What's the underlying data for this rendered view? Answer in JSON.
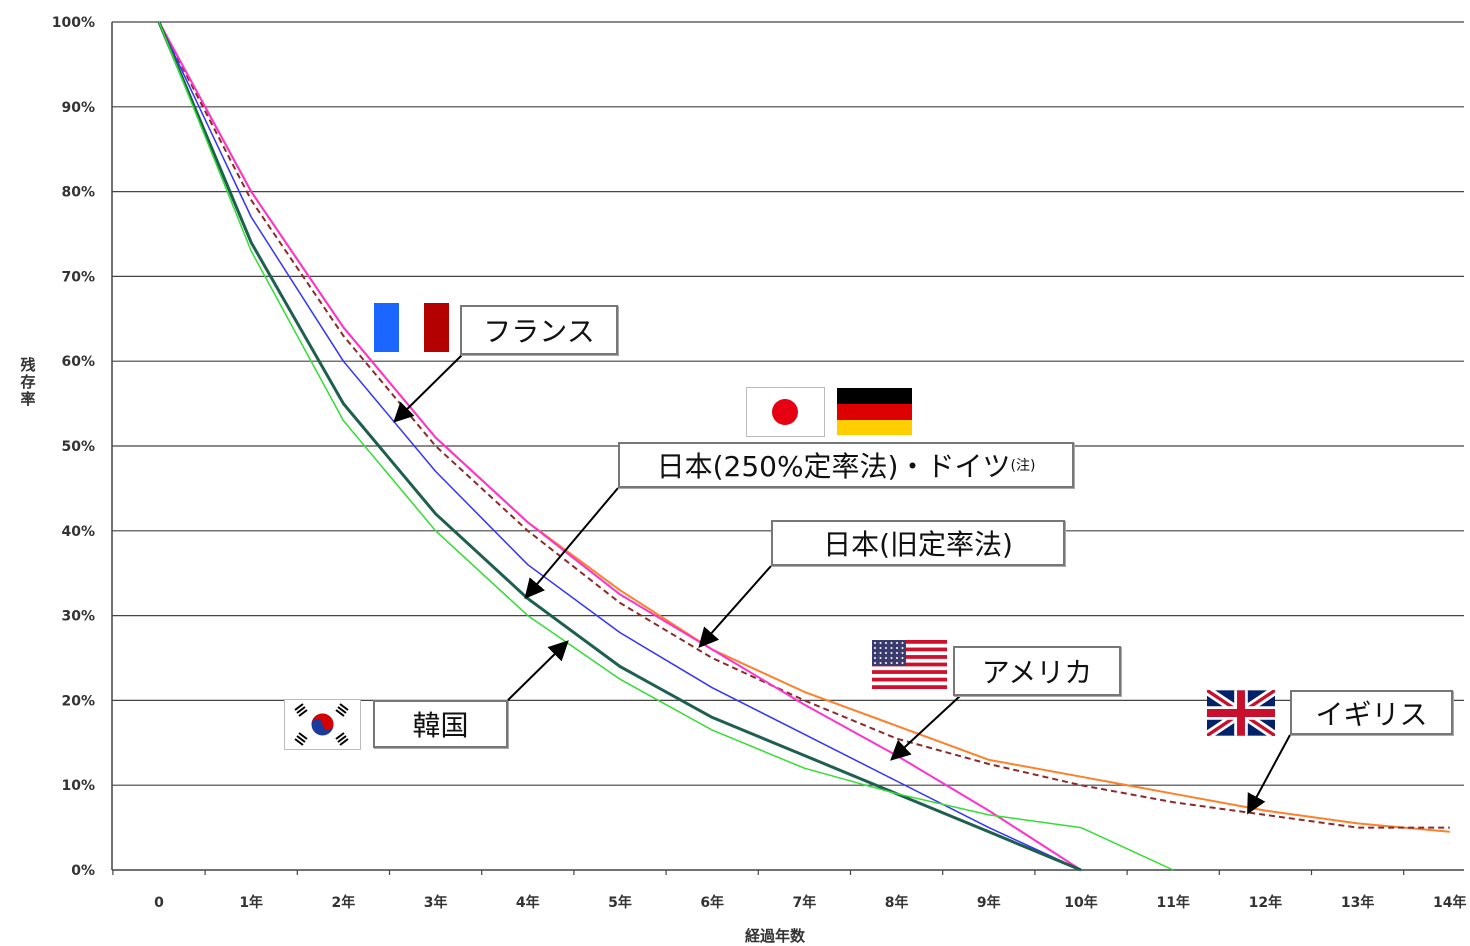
{
  "chart_data": {
    "type": "line",
    "title": "",
    "xlabel": "経過年数",
    "ylabel": "残存率",
    "ylim": [
      0,
      100
    ],
    "xlim": [
      0,
      14
    ],
    "grid": true,
    "x_tick_labels": [
      "0",
      "1年",
      "2年",
      "3年",
      "4年",
      "5年",
      "6年",
      "7年",
      "8年",
      "9年",
      "10年",
      "11年",
      "12年",
      "13年",
      "14年"
    ],
    "y_tick_labels": [
      "0%",
      "10%",
      "20%",
      "30%",
      "40%",
      "50%",
      "60%",
      "70%",
      "80%",
      "90%",
      "100%"
    ],
    "series": [
      {
        "key": "uk",
        "name": "イギリス",
        "color": "#ff7f2a",
        "dash": false,
        "width": 2,
        "x": [
          0,
          1,
          2,
          3,
          4,
          5,
          6,
          7,
          8,
          9,
          10,
          11,
          12,
          13,
          14
        ],
        "y": [
          100,
          80,
          64,
          51,
          41,
          33,
          26,
          21,
          17,
          13,
          11,
          9,
          7,
          5.5,
          4.5
        ]
      },
      {
        "key": "jp_de",
        "name": "日本(250%定率法)・ドイツ",
        "color": "#8b2a2a",
        "dash": true,
        "width": 2,
        "x": [
          0,
          1,
          2,
          3,
          4,
          5,
          6,
          7,
          8,
          9,
          10,
          11,
          12,
          13,
          14
        ],
        "y": [
          100,
          79,
          63,
          50,
          40,
          31.5,
          25,
          20,
          15.5,
          12.5,
          10,
          8,
          6.5,
          5,
          5
        ]
      },
      {
        "key": "france",
        "name": "フランス",
        "color": "#ff33cc",
        "dash": false,
        "width": 2,
        "x": [
          0,
          1,
          2,
          3,
          4,
          5,
          6,
          7,
          8,
          9,
          10
        ],
        "y": [
          100,
          80,
          64,
          51,
          41,
          32.5,
          26,
          19.5,
          13.5,
          7,
          0
        ]
      },
      {
        "key": "jp_old",
        "name": "日本(旧定率法)",
        "color": "#3333ff",
        "dash": false,
        "width": 1.5,
        "x": [
          0,
          1,
          2,
          3,
          4,
          5,
          6,
          7,
          8,
          9,
          10
        ],
        "y": [
          100,
          77,
          60,
          47,
          36,
          28,
          21.5,
          16,
          10.5,
          5,
          0
        ]
      },
      {
        "key": "korea",
        "name": "韓国",
        "color": "#1f5f4f",
        "dash": false,
        "width": 3,
        "x": [
          0,
          1,
          2,
          3,
          4,
          5,
          6,
          7,
          8,
          9,
          10
        ],
        "y": [
          100,
          74,
          55,
          42,
          32,
          24,
          18,
          13.5,
          9,
          4.5,
          0
        ]
      },
      {
        "key": "usa",
        "name": "アメリカ",
        "color": "#33dd33",
        "dash": false,
        "width": 1.5,
        "x": [
          0,
          1,
          2,
          3,
          4,
          5,
          6,
          7,
          8,
          9,
          10,
          11
        ],
        "y": [
          100,
          73,
          53,
          40,
          30,
          22.5,
          16.5,
          12,
          9,
          6.5,
          5,
          0
        ]
      }
    ]
  },
  "labels": {
    "france": "フランス",
    "jp_de_main": "日本(250%定率法)・ドイツ",
    "jp_de_note": "(注)",
    "jp_old": "日本(旧定率法)",
    "korea": "韓国",
    "usa": "アメリカ",
    "uk": "イギリス"
  },
  "flags": {
    "france": "france-flag",
    "japan": "japan-flag",
    "germany": "germany-flag",
    "usa": "usa-flag",
    "korea": "korea-flag",
    "uk": "uk-flag"
  }
}
